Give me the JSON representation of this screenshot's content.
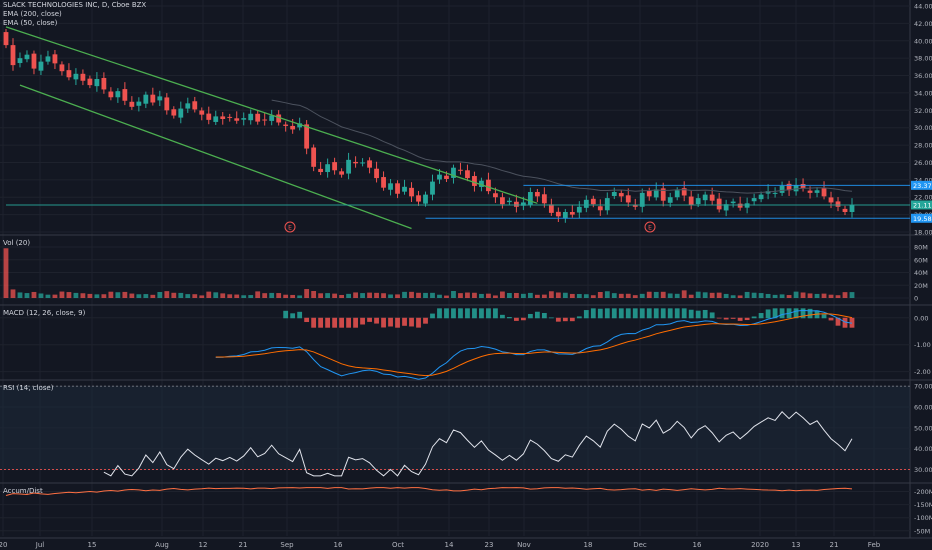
{
  "price_pane": {
    "symbol_line": "SLACK TECHNOLOGIES INC, D, Cboe BZX",
    "indicators": [
      "EMA (200, close)",
      "EMA (50, close)"
    ],
    "axis_ticks": [
      "44.00",
      "42.00",
      "40.00",
      "38.00",
      "36.00",
      "34.00",
      "32.00",
      "30.00",
      "28.00",
      "26.00",
      "24.00",
      "22.00",
      "20.00",
      "18.00"
    ],
    "price_labels": [
      {
        "text": "23.37",
        "color": "#2196f3"
      },
      {
        "text": "21.11",
        "color": "#26a69a"
      },
      {
        "text": "19.58",
        "color": "#2196f3"
      }
    ],
    "earnings_markers": [
      "E",
      "E"
    ]
  },
  "volume_pane": {
    "label": "Vol (20)",
    "axis_ticks": [
      "80M",
      "60M",
      "40M",
      "20M",
      "0"
    ]
  },
  "macd_pane": {
    "label": "MACD (12, 26, close, 9)",
    "axis_ticks": [
      "0.00",
      "-1.00",
      "-2.00"
    ]
  },
  "rsi_pane": {
    "label": "RSI (14, close)",
    "axis_ticks": [
      "70.00",
      "60.00",
      "50.00",
      "40.00",
      "30.00"
    ]
  },
  "accum_pane": {
    "label": "Accum/Dist",
    "axis_ticks": [
      "-50M",
      "-100M",
      "-150M",
      "-200M"
    ]
  },
  "time_axis": [
    "20",
    "Jul",
    "15",
    "Aug",
    "12",
    "21",
    "Sep",
    "16",
    "Oct",
    "14",
    "23",
    "Nov",
    "18",
    "Dec",
    "16",
    "2020",
    "13",
    "21",
    "Feb"
  ],
  "colors": {
    "background": "#131722",
    "up": "#26a69a",
    "down": "#ef5350",
    "channel": "#4caf50",
    "level": "#2196f3",
    "macd": "#2196f3",
    "signal": "#ff6d00",
    "rsi": "#e0e3eb",
    "accum": "#ff7043"
  },
  "chart_data": {
    "type": "candlestick",
    "title": "SLACK TECHNOLOGIES INC, D, Cboe BZX",
    "ylim": [
      18,
      44
    ],
    "closes": [
      39.5,
      37.2,
      38.0,
      38.4,
      36.8,
      37.6,
      38.2,
      37.4,
      36.5,
      35.8,
      36.2,
      35.4,
      34.9,
      35.6,
      34.4,
      33.5,
      34.2,
      33.1,
      32.4,
      33.0,
      33.8,
      32.9,
      33.6,
      32.0,
      31.4,
      32.2,
      32.8,
      32.1,
      31.5,
      30.9,
      31.3,
      31.0,
      31.2,
      30.8,
      31.1,
      31.6,
      30.7,
      30.9,
      31.4,
      30.6,
      30.2,
      29.8,
      30.5,
      27.6,
      25.5,
      24.9,
      25.8,
      25.1,
      24.6,
      26.3,
      25.9,
      26.0,
      25.4,
      24.2,
      23.1,
      23.6,
      22.4,
      23.2,
      22.1,
      21.5,
      22.3,
      23.8,
      24.6,
      24.1,
      25.4,
      25.1,
      24.2,
      23.3,
      23.9,
      22.7,
      22.0,
      21.2,
      21.6,
      20.9,
      21.4,
      22.6,
      22.1,
      21.3,
      20.2,
      19.8,
      20.3,
      20.0,
      20.9,
      21.7,
      21.2,
      20.5,
      21.9,
      22.6,
      22.1,
      21.4,
      20.9,
      22.5,
      22.1,
      22.9,
      21.6,
      22.0,
      22.8,
      22.2,
      21.1,
      21.9,
      22.3,
      21.6,
      20.6,
      21.2,
      21.5,
      20.8,
      21.3,
      21.9,
      22.3,
      22.7,
      22.5,
      23.3,
      22.8,
      23.4,
      23.0,
      22.5,
      22.8,
      22.1,
      21.4,
      20.9,
      20.3,
      21.1
    ],
    "volume_ylim": [
      0,
      80
    ],
    "macd_ylim": [
      -2.2,
      0.4
    ],
    "rsi_ylim": [
      25,
      72
    ],
    "rsi_levels": [
      70,
      30
    ],
    "accum_ylim": [
      -225,
      -30
    ],
    "channel": {
      "upper": [
        [
          0,
          41.6
        ],
        [
          76,
          21.3
        ]
      ],
      "lower": [
        [
          2,
          34.9
        ],
        [
          58,
          18.4
        ]
      ]
    },
    "levels": [
      23.37,
      21.11,
      19.58
    ]
  }
}
